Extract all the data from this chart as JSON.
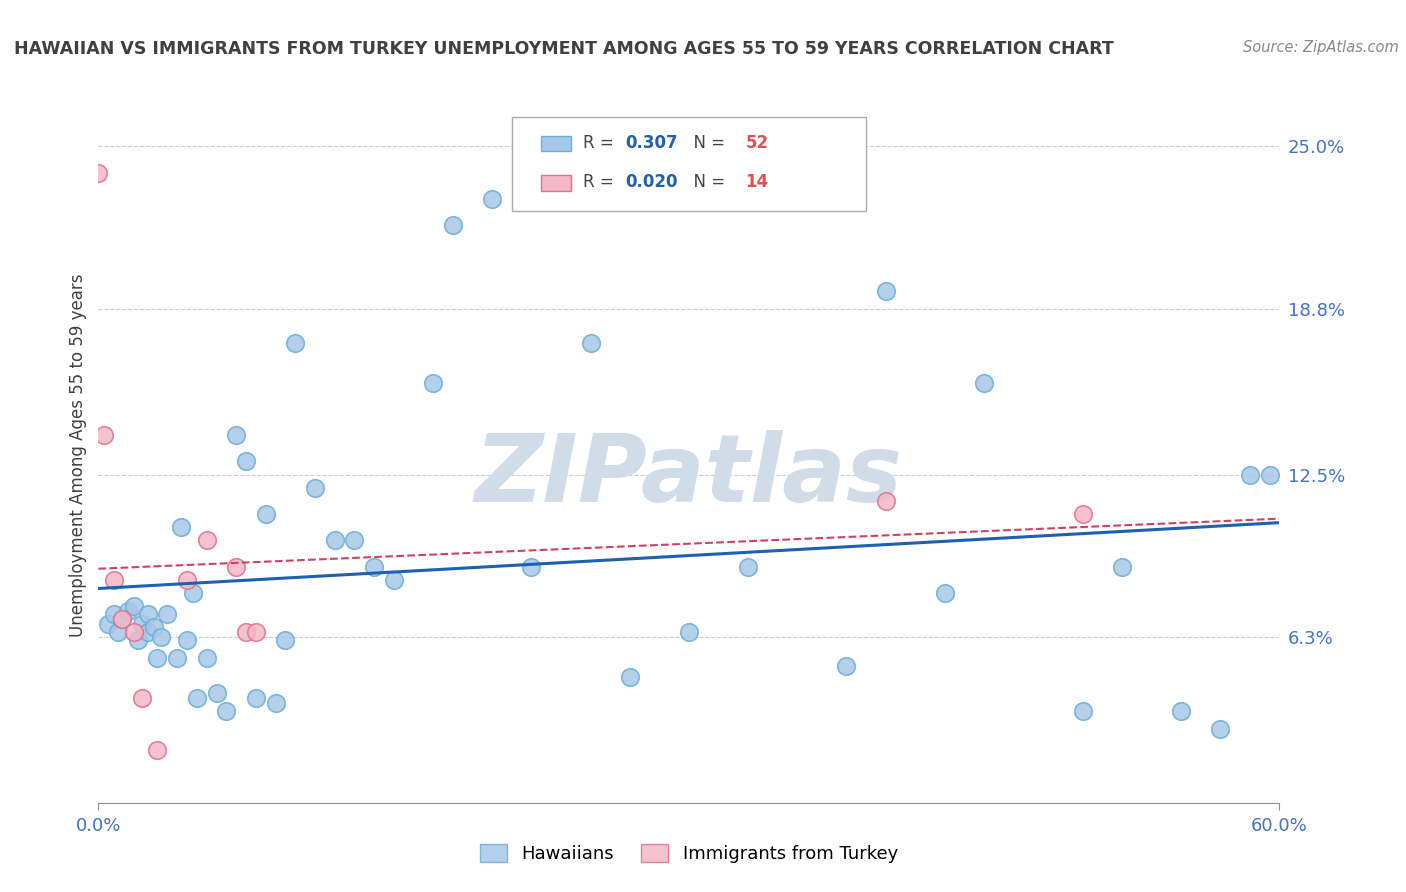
{
  "title": "HAWAIIAN VS IMMIGRANTS FROM TURKEY UNEMPLOYMENT AMONG AGES 55 TO 59 YEARS CORRELATION CHART",
  "source": "Source: ZipAtlas.com",
  "ylabel": "Unemployment Among Ages 55 to 59 years",
  "xlim": [
    0.0,
    0.6
  ],
  "ylim": [
    0.0,
    0.265
  ],
  "xtick_positions": [
    0.0,
    0.6
  ],
  "xticklabels": [
    "0.0%",
    "60.0%"
  ],
  "ytick_positions": [
    0.063,
    0.125,
    0.188,
    0.25
  ],
  "ytick_labels": [
    "6.3%",
    "12.5%",
    "18.8%",
    "25.0%"
  ],
  "hawaiian_color": "#a8c8e8",
  "hawaiian_edge_color": "#6baed6",
  "turkey_color": "#f4b8c8",
  "turkey_edge_color": "#e07090",
  "trend_hawaiian_color": "#2060b0",
  "trend_turkey_color": "#d04060",
  "hawaiian_R": 0.307,
  "hawaiian_N": 52,
  "turkey_R": 0.02,
  "turkey_N": 14,
  "watermark": "ZIPatlas",
  "watermark_color": "#d0dce8",
  "hawaiian_x": [
    0.005,
    0.008,
    0.01,
    0.012,
    0.015,
    0.018,
    0.02,
    0.022,
    0.025,
    0.025,
    0.028,
    0.03,
    0.032,
    0.035,
    0.04,
    0.042,
    0.045,
    0.048,
    0.05,
    0.055,
    0.06,
    0.065,
    0.07,
    0.075,
    0.08,
    0.085,
    0.09,
    0.095,
    0.1,
    0.11,
    0.12,
    0.13,
    0.14,
    0.15,
    0.17,
    0.18,
    0.2,
    0.22,
    0.25,
    0.27,
    0.3,
    0.33,
    0.38,
    0.4,
    0.43,
    0.45,
    0.5,
    0.52,
    0.55,
    0.57,
    0.585,
    0.595
  ],
  "hawaiian_y": [
    0.068,
    0.072,
    0.065,
    0.07,
    0.073,
    0.075,
    0.062,
    0.068,
    0.065,
    0.072,
    0.067,
    0.055,
    0.063,
    0.072,
    0.055,
    0.105,
    0.062,
    0.08,
    0.04,
    0.055,
    0.042,
    0.035,
    0.14,
    0.13,
    0.04,
    0.11,
    0.038,
    0.062,
    0.175,
    0.12,
    0.1,
    0.1,
    0.09,
    0.085,
    0.16,
    0.22,
    0.23,
    0.09,
    0.175,
    0.048,
    0.065,
    0.09,
    0.052,
    0.195,
    0.08,
    0.16,
    0.035,
    0.09,
    0.035,
    0.028,
    0.125,
    0.125
  ],
  "turkey_x": [
    0.0,
    0.003,
    0.008,
    0.012,
    0.018,
    0.022,
    0.03,
    0.045,
    0.055,
    0.07,
    0.075,
    0.08,
    0.4,
    0.5
  ],
  "turkey_y": [
    0.24,
    0.14,
    0.085,
    0.07,
    0.065,
    0.04,
    0.02,
    0.085,
    0.1,
    0.09,
    0.065,
    0.065,
    0.115,
    0.11
  ],
  "legend_R_color": "#2060b0",
  "legend_N_color": "#e05050",
  "grid_color": "#c8ccd8",
  "axis_color": "#909090",
  "title_color": "#404040",
  "ylabel_color": "#404040",
  "tick_label_color": "#4472c4"
}
